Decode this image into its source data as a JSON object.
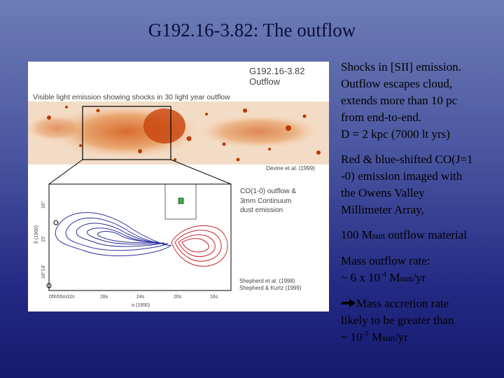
{
  "title": "G192.16-3.82: The outflow",
  "figure": {
    "name": "G192.16-3.82",
    "subtitle": "Outflow",
    "caption": "Visible light emission showing shocks in 30 light year outflow",
    "credit_optical": "Devine et al. (1999)",
    "co_label": [
      "CO(1-0) outflow &",
      "3mm Continuum",
      "dust emission"
    ],
    "credit_co": [
      "Shepherd et al. (1998)",
      "Shepherd & Kurtz (1999)"
    ],
    "x_axis_label": "α (1950)",
    "y_axis_label": "δ (1950)",
    "x_ticks": [
      "05h55m32s",
      "28s",
      "24s",
      "20s",
      "16s"
    ],
    "y_ticks": [
      "16°",
      "15'",
      "16°14'"
    ]
  },
  "notes": [
    {
      "lines": [
        "Shocks in [SII] emission.",
        "Outflow escapes cloud,",
        "extends more than 10 pc",
        "from end-to-end.",
        "D = 2 kpc (7000 lt yrs)"
      ]
    },
    {
      "lines": [
        "Red & blue-shifted CO(J=1",
        "-0) emission imaged with",
        "the Owens Valley",
        "Millimeter Array,"
      ]
    },
    {
      "pre": "100 M",
      "sub": "sun",
      "post": " outflow material"
    },
    {
      "line1": "Mass outflow rate:",
      "pre": "~ 6 x 10",
      "exp": "-4",
      "mid": " M",
      "sub": "sun",
      "post": "/yr"
    },
    {
      "line1": "Mass accretion rate",
      "line2": "likely to be greater than",
      "pre": "~ 10",
      "exp": "-3",
      "mid": " M",
      "sub": "sun",
      "post": "/yr"
    }
  ]
}
